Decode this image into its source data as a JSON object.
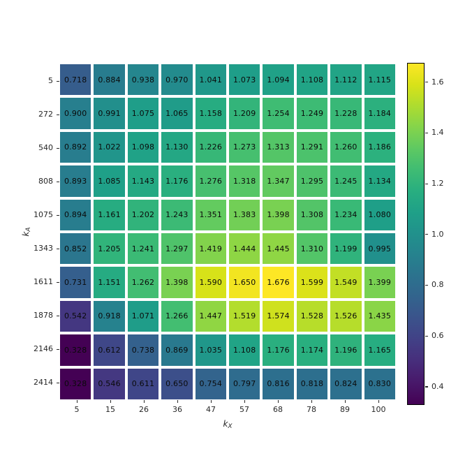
{
  "figure": {
    "background": "#ffffff"
  },
  "chart_data": {
    "type": "heatmap",
    "colormap": "viridis",
    "vmin": 0.328,
    "vmax": 1.676,
    "grid_line_color": "#ffffff",
    "annotation_color": "#0a0a0a",
    "xlabel": {
      "base": "k",
      "sub": "X"
    },
    "ylabel": {
      "base": "k",
      "sub": "A"
    },
    "x_ticks": [
      "5",
      "15",
      "26",
      "36",
      "47",
      "57",
      "68",
      "78",
      "89",
      "100"
    ],
    "y_ticks": [
      "5",
      "272",
      "540",
      "808",
      "1075",
      "1343",
      "1611",
      "1878",
      "2146",
      "2414"
    ],
    "colorbar_ticks": [
      "0.4",
      "0.6",
      "0.8",
      "1.0",
      "1.2",
      "1.4",
      "1.6"
    ],
    "values": [
      [
        0.718,
        0.884,
        0.938,
        0.97,
        1.041,
        1.073,
        1.094,
        1.108,
        1.112,
        1.115
      ],
      [
        0.9,
        0.991,
        1.075,
        1.065,
        1.158,
        1.209,
        1.254,
        1.249,
        1.228,
        1.184
      ],
      [
        0.892,
        1.022,
        1.098,
        1.13,
        1.226,
        1.273,
        1.313,
        1.291,
        1.26,
        1.186
      ],
      [
        0.893,
        1.085,
        1.143,
        1.176,
        1.276,
        1.318,
        1.347,
        1.295,
        1.245,
        1.134
      ],
      [
        0.894,
        1.161,
        1.202,
        1.243,
        1.351,
        1.383,
        1.398,
        1.308,
        1.234,
        1.08
      ],
      [
        0.852,
        1.205,
        1.241,
        1.297,
        1.419,
        1.444,
        1.445,
        1.31,
        1.199,
        0.995
      ],
      [
        0.731,
        1.151,
        1.262,
        1.398,
        1.59,
        1.65,
        1.676,
        1.599,
        1.549,
        1.399
      ],
      [
        0.542,
        0.918,
        1.071,
        1.266,
        1.447,
        1.519,
        1.574,
        1.528,
        1.526,
        1.435
      ],
      [
        0.328,
        0.612,
        0.738,
        0.869,
        1.035,
        1.108,
        1.176,
        1.174,
        1.196,
        1.165
      ],
      [
        0.328,
        0.546,
        0.611,
        0.65,
        0.754,
        0.797,
        0.816,
        0.818,
        0.824,
        0.83
      ]
    ],
    "value_decimals": 3
  }
}
